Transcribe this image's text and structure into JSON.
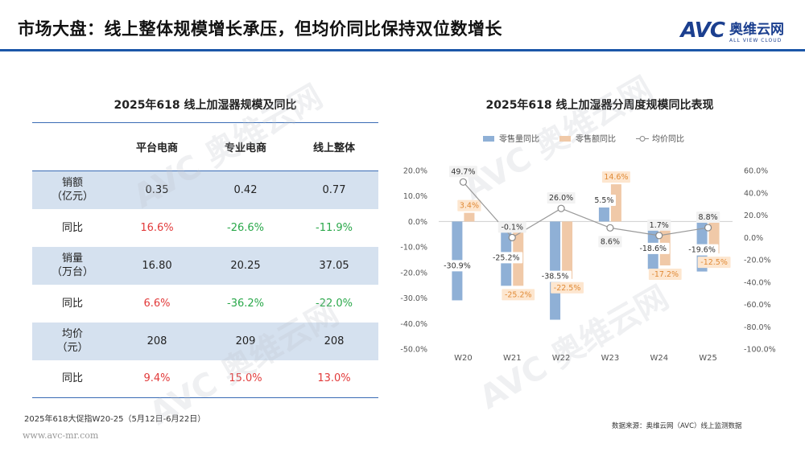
{
  "header": {
    "title": "市场大盘：线上整体规模增长承压，但均价同比保持双位数增长",
    "logo_mark": "AVC",
    "logo_cn": "奥维云网",
    "logo_en": "ALL VIEW CLOUD"
  },
  "table": {
    "title": "2025年618 线上加湿器规模及同比",
    "columns": [
      "",
      "平台电商",
      "专业电商",
      "线上整体"
    ],
    "rows": [
      {
        "label_line1": "销额",
        "label_line2": "（亿元）",
        "values": [
          "0.35",
          "0.42",
          "0.77"
        ],
        "shade": true,
        "kind": "value"
      },
      {
        "label_line1": "同比",
        "label_line2": "",
        "values": [
          "16.6%",
          "-26.6%",
          "-11.9%"
        ],
        "shade": false,
        "kind": "growth"
      },
      {
        "label_line1": "销量",
        "label_line2": "（万台）",
        "values": [
          "16.80",
          "20.25",
          "37.05"
        ],
        "shade": true,
        "kind": "value"
      },
      {
        "label_line1": "同比",
        "label_line2": "",
        "values": [
          "6.6%",
          "-36.2%",
          "-22.0%"
        ],
        "shade": false,
        "kind": "growth"
      },
      {
        "label_line1": "均价",
        "label_line2": "（元）",
        "values": [
          "208",
          "209",
          "208"
        ],
        "shade": true,
        "kind": "value"
      },
      {
        "label_line1": "同比",
        "label_line2": "",
        "values": [
          "9.4%",
          "15.0%",
          "13.0%"
        ],
        "shade": false,
        "kind": "growth"
      }
    ]
  },
  "chart_data": {
    "type": "bar",
    "title": "2025年618 线上加湿器分周度规模同比表现",
    "categories": [
      "W20",
      "W21",
      "W22",
      "W23",
      "W24",
      "W25"
    ],
    "series": [
      {
        "name": "零售量同比",
        "type": "bar",
        "axis": "left",
        "color": "#8fb0d6",
        "values": [
          -30.9,
          -25.2,
          -38.5,
          5.5,
          -18.6,
          -19.6
        ]
      },
      {
        "name": "零售额同比",
        "type": "bar",
        "axis": "left",
        "color": "#f0c9a8",
        "values": [
          3.4,
          -25.2,
          -22.5,
          14.6,
          -17.2,
          -12.5
        ]
      },
      {
        "name": "均价同比",
        "type": "line",
        "axis": "right",
        "color": "#888888",
        "values": [
          49.7,
          -0.1,
          26.0,
          8.6,
          1.7,
          8.8
        ]
      }
    ],
    "y_left": {
      "min": -50,
      "max": 20,
      "step": 10,
      "ticks": [
        "20.0%",
        "10.0%",
        "0.0%",
        "-10.0%",
        "-20.0%",
        "-30.0%",
        "-40.0%",
        "-50.0%"
      ]
    },
    "y_right": {
      "min": -100,
      "max": 60,
      "step": 20,
      "ticks": [
        "60.0%",
        "40.0%",
        "20.0%",
        "0.0%",
        "-20.0%",
        "-40.0%",
        "-60.0%",
        "-80.0%",
        "-100.0%"
      ]
    },
    "legend_position": "top",
    "grid": false
  },
  "footnote": "2025年618大促指W20-25（5月12日-6月22日）",
  "website": "www.avc-mr.com",
  "source": "数据来源：奥维云网（AVC）线上监测数据",
  "colors": {
    "accent": "#1b56a8",
    "table_shade": "#d5e1ef",
    "positive": "#e23a3a",
    "negative": "#2aa84a"
  }
}
